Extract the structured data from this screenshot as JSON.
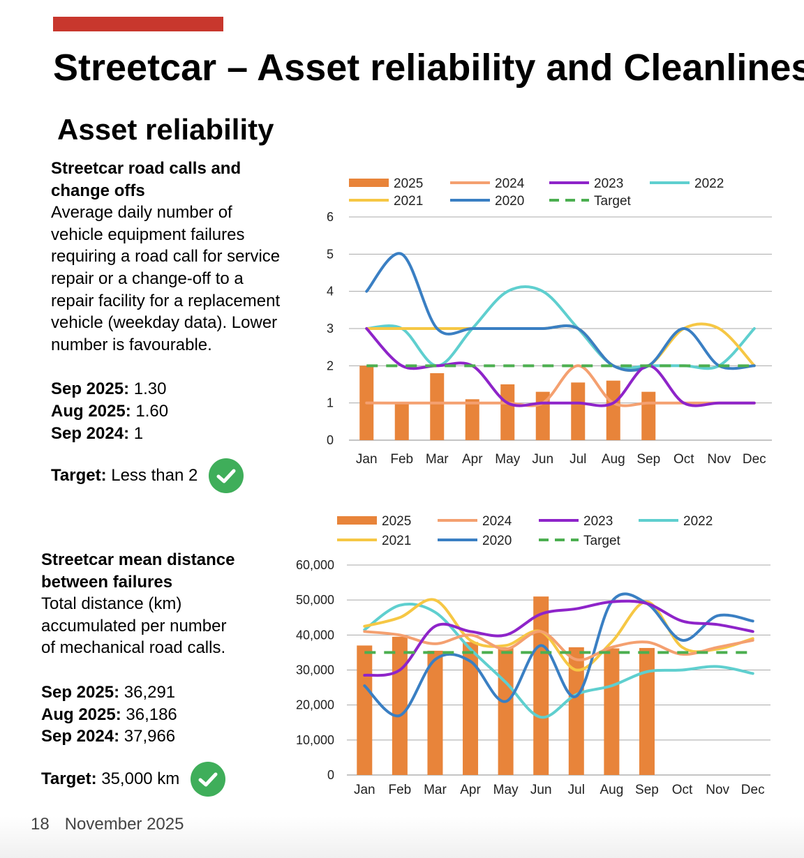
{
  "slide": {
    "title": "Streetcar – Asset reliability and Cleanliness",
    "section": "Asset reliability",
    "footer_page": "18",
    "footer_date": "November 2025",
    "accent_color": "#c8372d"
  },
  "panel1": {
    "heading_line1": "Streetcar road calls and",
    "heading_line2": "change offs",
    "desc": [
      "Average daily number of",
      "vehicle equipment failures",
      "requiring a road call for service",
      "repair or a change-off to a",
      "repair facility for a replacement",
      "vehicle (weekday data). Lower",
      "number is favourable."
    ],
    "stats": [
      {
        "label": "Sep 2025:",
        "value": "1.30"
      },
      {
        "label": "Aug 2025:",
        "value": "1.60"
      },
      {
        "label": "Sep 2024:",
        "value": "1"
      }
    ],
    "target_label": "Target:",
    "target_value": "Less than 2"
  },
  "panel2": {
    "heading_line1": "Streetcar mean distance",
    "heading_line2": "between failures",
    "desc": [
      "Total distance (km)",
      "accumulated per number",
      "of mechanical road calls."
    ],
    "stats": [
      {
        "label": "Sep 2025:",
        "value": "36,291"
      },
      {
        "label": "Aug 2025:",
        "value": "36,186"
      },
      {
        "label": "Sep 2024:",
        "value": "37,966"
      }
    ],
    "target_label": "Target:",
    "target_value": "35,000 km"
  },
  "chart_data": [
    {
      "type": "bar",
      "title": "Streetcar road calls and change offs",
      "categories": [
        "Jan",
        "Feb",
        "Mar",
        "Apr",
        "May",
        "Jun",
        "Jul",
        "Aug",
        "Sep",
        "Oct",
        "Nov",
        "Dec"
      ],
      "ylim": [
        0,
        6
      ],
      "yticks": [
        0,
        1,
        2,
        3,
        4,
        5,
        6
      ],
      "ytick_labels": [
        "0",
        "1",
        "2",
        "3",
        "4",
        "5",
        "6"
      ],
      "grid": true,
      "legend_rows": [
        [
          "2025",
          "2024",
          "2023",
          "2022"
        ],
        [
          "2021",
          "2020",
          "Target"
        ]
      ],
      "series": [
        {
          "name": "2025",
          "kind": "bar",
          "color": "#e8843a",
          "values": [
            2.0,
            1.0,
            1.8,
            1.1,
            1.5,
            1.3,
            1.55,
            1.6,
            1.3,
            null,
            null,
            null
          ]
        },
        {
          "name": "2024",
          "kind": "line",
          "color": "#f4a070",
          "values": [
            1.0,
            1.0,
            1.0,
            1.0,
            1.0,
            1.0,
            2.0,
            1.0,
            1.0,
            1.0,
            1.0,
            1.0
          ]
        },
        {
          "name": "2023",
          "kind": "line",
          "color": "#8e24c9",
          "values": [
            3.0,
            2.0,
            2.0,
            2.0,
            1.0,
            1.0,
            1.0,
            1.0,
            2.0,
            1.0,
            1.0,
            1.0
          ]
        },
        {
          "name": "2022",
          "kind": "line",
          "color": "#5fcfcf",
          "values": [
            3.0,
            3.0,
            2.0,
            3.0,
            4.0,
            4.0,
            3.0,
            2.0,
            2.0,
            2.0,
            2.0,
            3.0
          ]
        },
        {
          "name": "2021",
          "kind": "line",
          "color": "#f6c744",
          "values": [
            3.0,
            3.0,
            3.0,
            3.0,
            3.0,
            3.0,
            3.0,
            2.0,
            2.0,
            3.0,
            3.0,
            2.0
          ]
        },
        {
          "name": "2020",
          "kind": "line",
          "color": "#3a7fc3",
          "values": [
            4.0,
            5.0,
            3.0,
            3.0,
            3.0,
            3.0,
            3.0,
            2.0,
            2.0,
            3.0,
            2.0,
            2.0
          ]
        },
        {
          "name": "Target",
          "kind": "dashed",
          "color": "#4caf50",
          "values": [
            2,
            2,
            2,
            2,
            2,
            2,
            2,
            2,
            2,
            2,
            2,
            2
          ]
        }
      ]
    },
    {
      "type": "bar",
      "title": "Streetcar mean distance between failures",
      "categories": [
        "Jan",
        "Feb",
        "Mar",
        "Apr",
        "May",
        "Jun",
        "Jul",
        "Aug",
        "Sep",
        "Oct",
        "Nov",
        "Dec"
      ],
      "ylim": [
        0,
        60000
      ],
      "yticks": [
        0,
        10000,
        20000,
        30000,
        40000,
        50000,
        60000
      ],
      "ytick_labels": [
        "0",
        "10,000",
        "20,000",
        "30,000",
        "40,000",
        "50,000",
        "60,000"
      ],
      "grid": true,
      "legend_rows": [
        [
          "2025",
          "2024",
          "2023",
          "2022"
        ],
        [
          "2021",
          "2020",
          "Target"
        ]
      ],
      "series": [
        {
          "name": "2025",
          "kind": "bar",
          "color": "#e8843a",
          "values": [
            37000,
            39500,
            35500,
            38000,
            36500,
            51000,
            36500,
            36186,
            36291,
            null,
            null,
            null
          ]
        },
        {
          "name": "2024",
          "kind": "line",
          "color": "#f4a070",
          "values": [
            41000,
            40000,
            37500,
            40000,
            36000,
            41000,
            33000,
            36500,
            37966,
            34500,
            36500,
            38500
          ]
        },
        {
          "name": "2023",
          "kind": "line",
          "color": "#8e24c9",
          "values": [
            28500,
            30000,
            42500,
            41000,
            40000,
            46000,
            47500,
            49500,
            49000,
            44000,
            43000,
            41000
          ]
        },
        {
          "name": "2022",
          "kind": "line",
          "color": "#5fcfcf",
          "values": [
            41500,
            48500,
            46500,
            36000,
            26500,
            16500,
            23000,
            25500,
            29500,
            30000,
            31000,
            29000
          ]
        },
        {
          "name": "2021",
          "kind": "line",
          "color": "#f6c744",
          "values": [
            42500,
            45000,
            50000,
            38500,
            37000,
            41000,
            30000,
            38000,
            49500,
            36500,
            36000,
            39000
          ]
        },
        {
          "name": "2020",
          "kind": "line",
          "color": "#3a7fc3",
          "values": [
            25500,
            17000,
            33000,
            32500,
            21000,
            37000,
            22500,
            49500,
            49000,
            38500,
            45500,
            44000
          ]
        },
        {
          "name": "Target",
          "kind": "dashed",
          "color": "#4caf50",
          "values": [
            35000,
            35000,
            35000,
            35000,
            35000,
            35000,
            35000,
            35000,
            35000,
            35000,
            35000,
            35000
          ]
        }
      ]
    }
  ]
}
